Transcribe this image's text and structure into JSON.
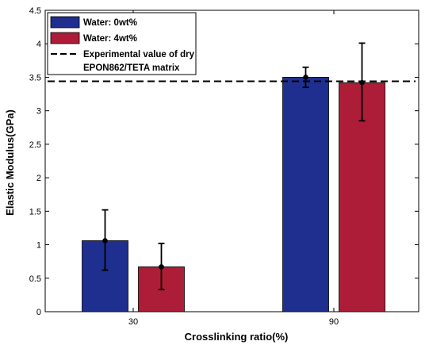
{
  "chart_data": {
    "type": "bar",
    "xlabel": "Crosslinking ratio(%)",
    "ylabel": "Elastic Modulus(GPa)",
    "categories": [
      "30",
      "90"
    ],
    "ylim": [
      0,
      4.5
    ],
    "yticks": [
      0,
      0.5,
      1,
      1.5,
      2,
      2.5,
      3,
      3.5,
      4,
      4.5
    ],
    "ytick_labels": [
      "0",
      "0.5",
      "1",
      "1.5",
      "2",
      "2.5",
      "3",
      "3.5",
      "4",
      "4.5"
    ],
    "series": [
      {
        "name": "Water: 0wt%",
        "color": "#1f2f8f",
        "values": [
          1.06,
          3.5
        ],
        "err_low": [
          0.62,
          3.35
        ],
        "err_high": [
          1.52,
          3.65
        ]
      },
      {
        "name": "Water: 4wt%",
        "color": "#ae1d38",
        "values": [
          0.67,
          3.42
        ],
        "err_low": [
          0.33,
          2.85
        ],
        "err_high": [
          1.02,
          4.01
        ]
      }
    ],
    "reference_line": {
      "value": 3.44,
      "label_line1": "Experimental value of dry",
      "label_line2": "EPON862/TETA matrix",
      "style": "dashed",
      "color": "#000000"
    },
    "grid": false,
    "legend_position": "top-left"
  }
}
